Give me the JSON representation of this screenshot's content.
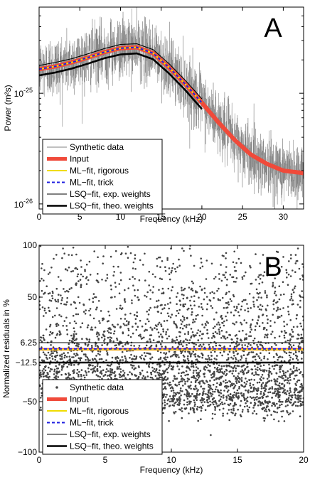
{
  "chart_data": [
    {
      "panel": "A",
      "type": "line",
      "xlabel": "Frequency (kHz)",
      "ylabel": "Power (m²s)",
      "xlim": [
        0,
        32.5
      ],
      "ylim": [
        9e-27,
        6e-25
      ],
      "yscale": "log",
      "x_ticks": [
        0,
        5,
        10,
        15,
        20,
        25,
        30
      ],
      "x_tick_labels": [
        "0",
        "5",
        "10",
        "15",
        "20",
        "25",
        "30"
      ],
      "y_ticks": [
        1e-26,
        1e-25
      ],
      "y_tick_labels_base": [
        "10",
        "10"
      ],
      "y_tick_labels_exp": [
        "-26",
        "-25"
      ],
      "grid": false,
      "legend_position": "lower-left",
      "colors": {
        "synthetic": "#808080",
        "input": "#f04a3a",
        "ml_rigorous": "#f0dc00",
        "ml_trick": "#2020e0",
        "lsq_exp": "#000000",
        "lsq_theo": "#000000"
      },
      "series": [
        {
          "name": "Synthetic data",
          "style": "noisy-line",
          "x": [
            0,
            2,
            4,
            6,
            8,
            10,
            12,
            14,
            16,
            18,
            20,
            22,
            24,
            26,
            28,
            30,
            32.5
          ],
          "y": [
            1.65e-25,
            1.75e-25,
            1.9e-25,
            2.1e-25,
            2.35e-25,
            2.55e-25,
            2.6e-25,
            2.3e-25,
            1.7e-25,
            1.2e-25,
            8.2e-26,
            5.5e-26,
            3.8e-26,
            2.8e-26,
            2.3e-26,
            2e-26,
            1.9e-26
          ]
        },
        {
          "name": "Input",
          "x": [
            0,
            2,
            4,
            6,
            8,
            10,
            12,
            14,
            16,
            18,
            20,
            22,
            24,
            26,
            28,
            30,
            32.5
          ],
          "y": [
            1.65e-25,
            1.75e-25,
            1.9e-25,
            2.1e-25,
            2.35e-25,
            2.55e-25,
            2.6e-25,
            2.3e-25,
            1.7e-25,
            1.2e-25,
            8.2e-26,
            5.5e-26,
            3.8e-26,
            2.8e-26,
            2.3e-26,
            2e-26,
            1.9e-26
          ]
        },
        {
          "name": "ML−fit, rigorous",
          "x": [
            0,
            2,
            4,
            6,
            8,
            10,
            12,
            14,
            16,
            18,
            20
          ],
          "y": [
            1.65e-25,
            1.75e-25,
            1.9e-25,
            2.1e-25,
            2.35e-25,
            2.55e-25,
            2.6e-25,
            2.3e-25,
            1.7e-25,
            1.2e-25,
            8.2e-26
          ]
        },
        {
          "name": "ML−fit, trick",
          "x": [
            0,
            2,
            4,
            6,
            8,
            10,
            12,
            14,
            16,
            18,
            20
          ],
          "y": [
            1.65e-25,
            1.75e-25,
            1.9e-25,
            2.1e-25,
            2.35e-25,
            2.55e-25,
            2.6e-25,
            2.3e-25,
            1.7e-25,
            1.2e-25,
            8.2e-26
          ]
        },
        {
          "name": "LSQ−fit, exp. weights",
          "x": [
            0,
            2,
            4,
            6,
            8,
            10,
            12,
            14,
            16,
            18,
            20
          ],
          "y": [
            1.78e-25,
            1.9e-25,
            2.05e-25,
            2.27e-25,
            2.53e-25,
            2.76e-25,
            2.8e-25,
            2.48e-25,
            1.84e-25,
            1.3e-25,
            8.9e-26
          ]
        },
        {
          "name": "LSQ−fit, theo. weights",
          "x": [
            0,
            2,
            4,
            6,
            8,
            10,
            12,
            14,
            16,
            18,
            20
          ],
          "y": [
            1.45e-25,
            1.54e-25,
            1.67e-25,
            1.85e-25,
            2.07e-25,
            2.24e-25,
            2.29e-25,
            2.03e-25,
            1.5e-25,
            1.06e-25,
            7.2e-26
          ]
        }
      ]
    },
    {
      "panel": "B",
      "type": "scatter",
      "xlabel": "Frequency (kHz)",
      "ylabel": "Normalized residuals in %",
      "xlim": [
        0,
        20
      ],
      "ylim": [
        -100,
        100
      ],
      "yscale": "custom",
      "x_ticks": [
        0,
        5,
        10,
        15,
        20
      ],
      "x_tick_labels": [
        "0",
        "5",
        "10",
        "15",
        "20"
      ],
      "y_ticks": [
        -100,
        -50,
        -12.5,
        6.25,
        50,
        100
      ],
      "y_tick_labels": [
        "−100",
        "−50",
        "−12.5",
        "6.25",
        "50",
        "100"
      ],
      "grid": false,
      "legend_position": "lower-left",
      "series": [
        {
          "name": "Synthetic data",
          "style": "dots",
          "x": [
            0,
            20
          ],
          "y_range": [
            -90,
            100
          ]
        },
        {
          "name": "Input",
          "x": [
            0,
            20
          ],
          "y": [
            0,
            0
          ]
        },
        {
          "name": "ML−fit, rigorous",
          "x": [
            0,
            20
          ],
          "y": [
            -0.3,
            -0.3
          ]
        },
        {
          "name": "ML−fit, trick",
          "x": [
            0,
            20
          ],
          "y": [
            0.4,
            0.4
          ]
        },
        {
          "name": "LSQ−fit, exp. weights",
          "x": [
            0,
            20
          ],
          "y": [
            6.25,
            6.25
          ]
        },
        {
          "name": "LSQ−fit, theo. weights",
          "x": [
            0,
            20
          ],
          "y": [
            -12.5,
            -12.5
          ]
        }
      ]
    }
  ],
  "panel_labels": [
    "A",
    "B"
  ]
}
